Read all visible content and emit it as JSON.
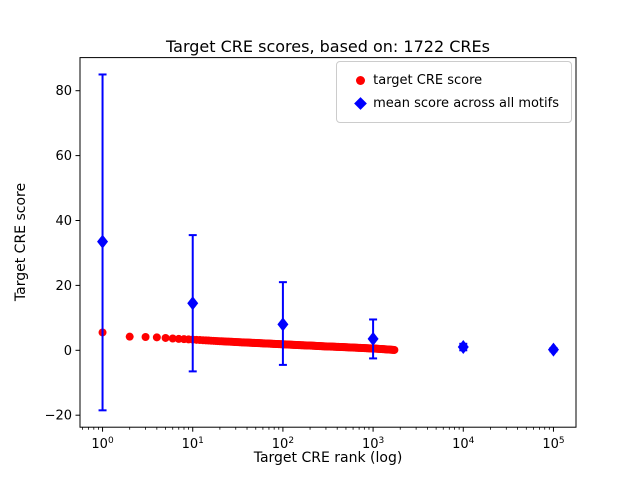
{
  "chart_data": {
    "type": "scatter",
    "title": "Target CRE scores, based on: 1722 CREs",
    "xlabel": "Target CRE rank (log)",
    "ylabel": "Target CRE score",
    "x_scale": "log",
    "xlim_log10": [
      -0.25,
      5.25
    ],
    "ylim": [
      -23.7,
      90.2
    ],
    "x_ticks_exponents": [
      0,
      1,
      2,
      3,
      4,
      5
    ],
    "y_ticks": [
      -20,
      0,
      20,
      40,
      60,
      80
    ],
    "grid": false,
    "legend_position": "upper right",
    "series": [
      {
        "name": "target CRE score",
        "marker": "circle",
        "color": "#ff0000",
        "n_points": 1722,
        "points_sampled": [
          [
            1,
            5.5
          ],
          [
            2,
            4.2
          ],
          [
            3,
            4.1
          ],
          [
            4,
            4.0
          ],
          [
            5,
            3.8
          ],
          [
            7,
            3.5
          ],
          [
            10,
            3.3
          ],
          [
            15,
            3.0
          ],
          [
            20,
            2.8
          ],
          [
            30,
            2.55
          ],
          [
            50,
            2.25
          ],
          [
            70,
            2.05
          ],
          [
            100,
            1.85
          ],
          [
            150,
            1.6
          ],
          [
            200,
            1.45
          ],
          [
            300,
            1.2
          ],
          [
            500,
            0.95
          ],
          [
            700,
            0.75
          ],
          [
            1000,
            0.55
          ],
          [
            1300,
            0.35
          ],
          [
            1722,
            0.1
          ]
        ]
      },
      {
        "name": "mean score across all motifs",
        "marker": "diamond",
        "color": "#0000ff",
        "x": [
          1,
          10,
          100,
          1000,
          10000,
          100000
        ],
        "y": [
          33.5,
          14.5,
          8.0,
          3.5,
          1.0,
          0.2
        ],
        "err_min": [
          -18.5,
          -6.5,
          -4.5,
          -2.5,
          0.0,
          -0.3
        ],
        "err_max": [
          85.0,
          35.5,
          21.0,
          9.5,
          2.0,
          0.7
        ]
      }
    ]
  }
}
